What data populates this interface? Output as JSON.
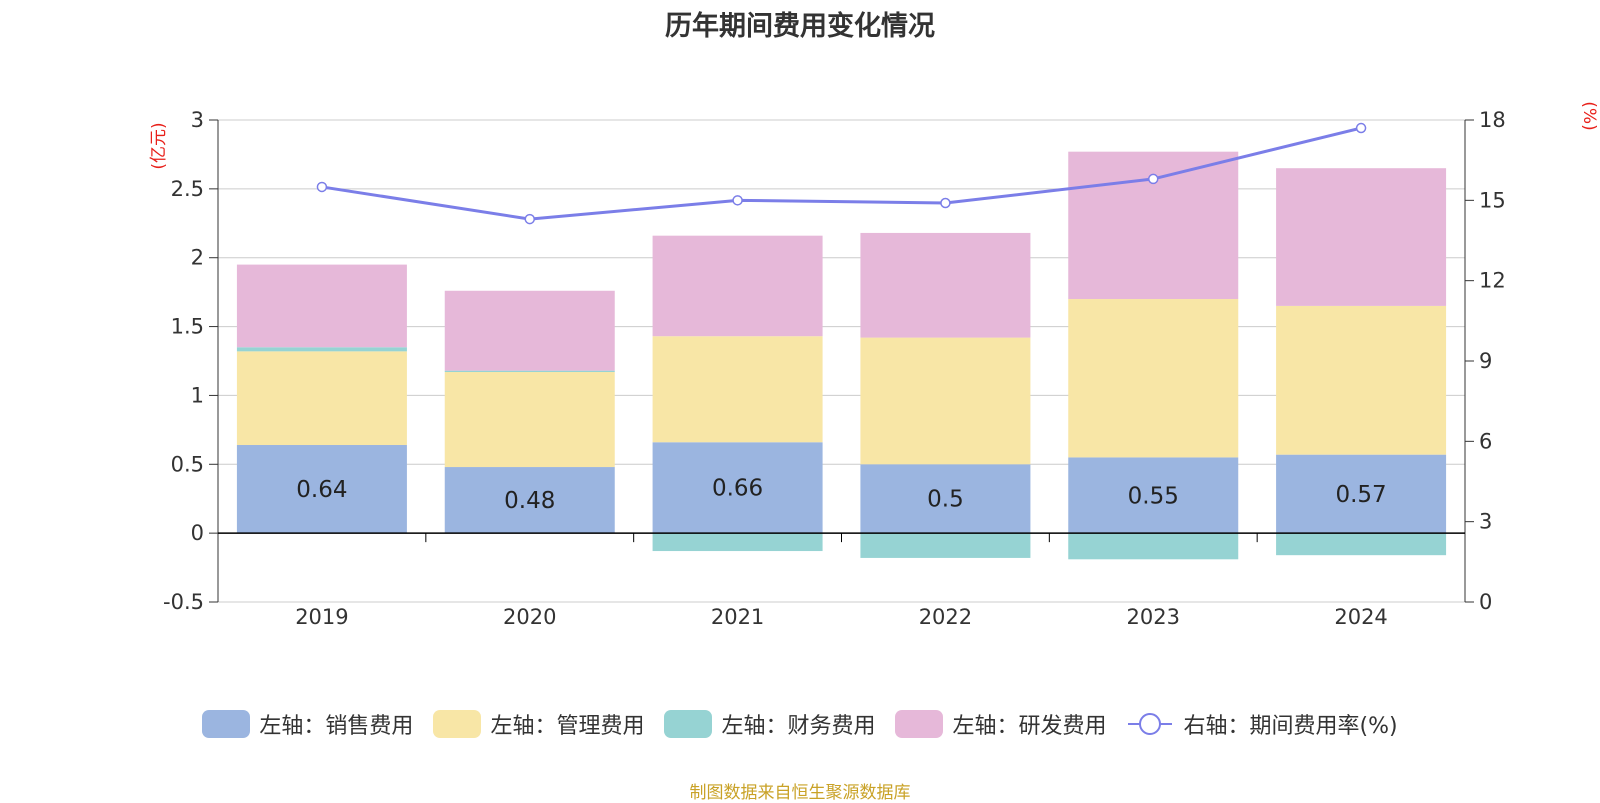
{
  "chart_data": {
    "type": "bar",
    "stacked": true,
    "title": "历年期间费用变化情况",
    "categories": [
      "2019",
      "2020",
      "2021",
      "2022",
      "2023",
      "2024"
    ],
    "y_left": {
      "unit": "(亿元)",
      "ylim": [
        -0.5,
        3
      ],
      "ticks": [
        "-0.5",
        "0",
        "0.5",
        "1",
        "1.5",
        "2",
        "2.5",
        "3"
      ]
    },
    "y_right": {
      "unit": "(%)",
      "ylim": [
        0,
        18
      ],
      "ticks": [
        "0",
        "3",
        "6",
        "9",
        "12",
        "15",
        "18"
      ]
    },
    "series": [
      {
        "name": "左轴：销售费用",
        "axis": "left",
        "type": "bar",
        "color": "#9bb5e0",
        "values": [
          0.64,
          0.48,
          0.66,
          0.5,
          0.55,
          0.57
        ],
        "labels": [
          "0.64",
          "0.48",
          "0.66",
          "0.5",
          "0.55",
          "0.57"
        ]
      },
      {
        "name": "左轴：管理费用",
        "axis": "left",
        "type": "bar",
        "color": "#f8e6a6",
        "values": [
          0.68,
          0.69,
          0.77,
          0.92,
          1.15,
          1.08
        ]
      },
      {
        "name": "左轴：财务费用",
        "axis": "left",
        "type": "bar",
        "color": "#96d3d3",
        "values": [
          0.03,
          0.01,
          -0.13,
          -0.18,
          -0.19,
          -0.16
        ]
      },
      {
        "name": "左轴：研发费用",
        "axis": "left",
        "type": "bar",
        "color": "#e6b8d9",
        "values": [
          0.6,
          0.58,
          0.73,
          0.76,
          1.07,
          1.0
        ]
      },
      {
        "name": "右轴：期间费用率(%)",
        "axis": "right",
        "type": "line",
        "color": "#7b7ee8",
        "values": [
          15.5,
          14.3,
          15.0,
          14.9,
          15.8,
          17.7
        ]
      }
    ],
    "legend_position": "bottom-center",
    "grid": true
  },
  "source_note": "制图数据来自恒生聚源数据库"
}
